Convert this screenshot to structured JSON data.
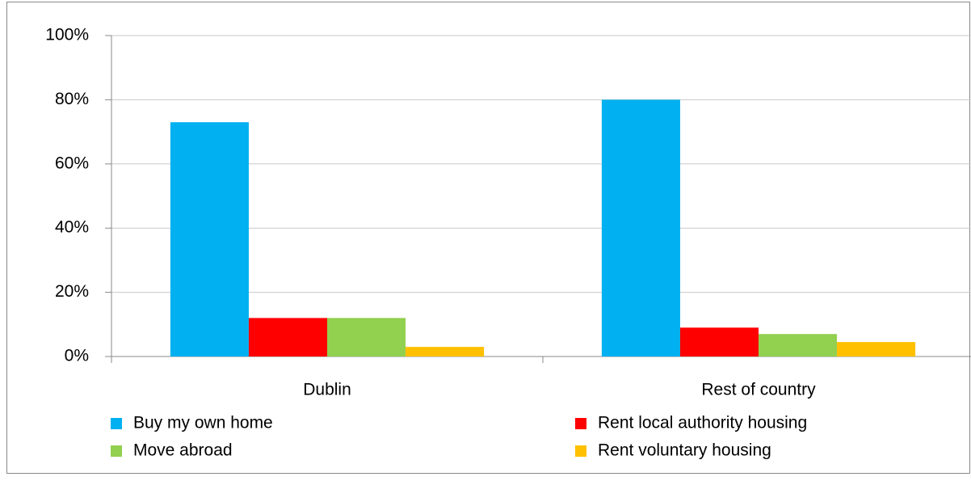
{
  "chart_data": {
    "type": "bar",
    "categories": [
      "Dublin",
      "Rest of country"
    ],
    "series": [
      {
        "name": "Buy my own home",
        "color": "#00b0f0",
        "values": [
          73,
          80
        ]
      },
      {
        "name": "Rent local authority  housing",
        "color": "#ff0000",
        "values": [
          12,
          9
        ]
      },
      {
        "name": "Move abroad",
        "color": "#92d050",
        "values": [
          12,
          7
        ]
      },
      {
        "name": "Rent voluntary housing",
        "color": "#ffc000",
        "values": [
          3,
          4.5
        ]
      }
    ],
    "ylim": [
      0,
      100
    ],
    "yticks": [
      {
        "value": 0,
        "label": "0%"
      },
      {
        "value": 20,
        "label": "20%"
      },
      {
        "value": 40,
        "label": "40%"
      },
      {
        "value": 60,
        "label": "60%"
      },
      {
        "value": 80,
        "label": "80%"
      },
      {
        "value": 100,
        "label": "100%"
      }
    ],
    "grid": true,
    "legend": "bottom"
  }
}
